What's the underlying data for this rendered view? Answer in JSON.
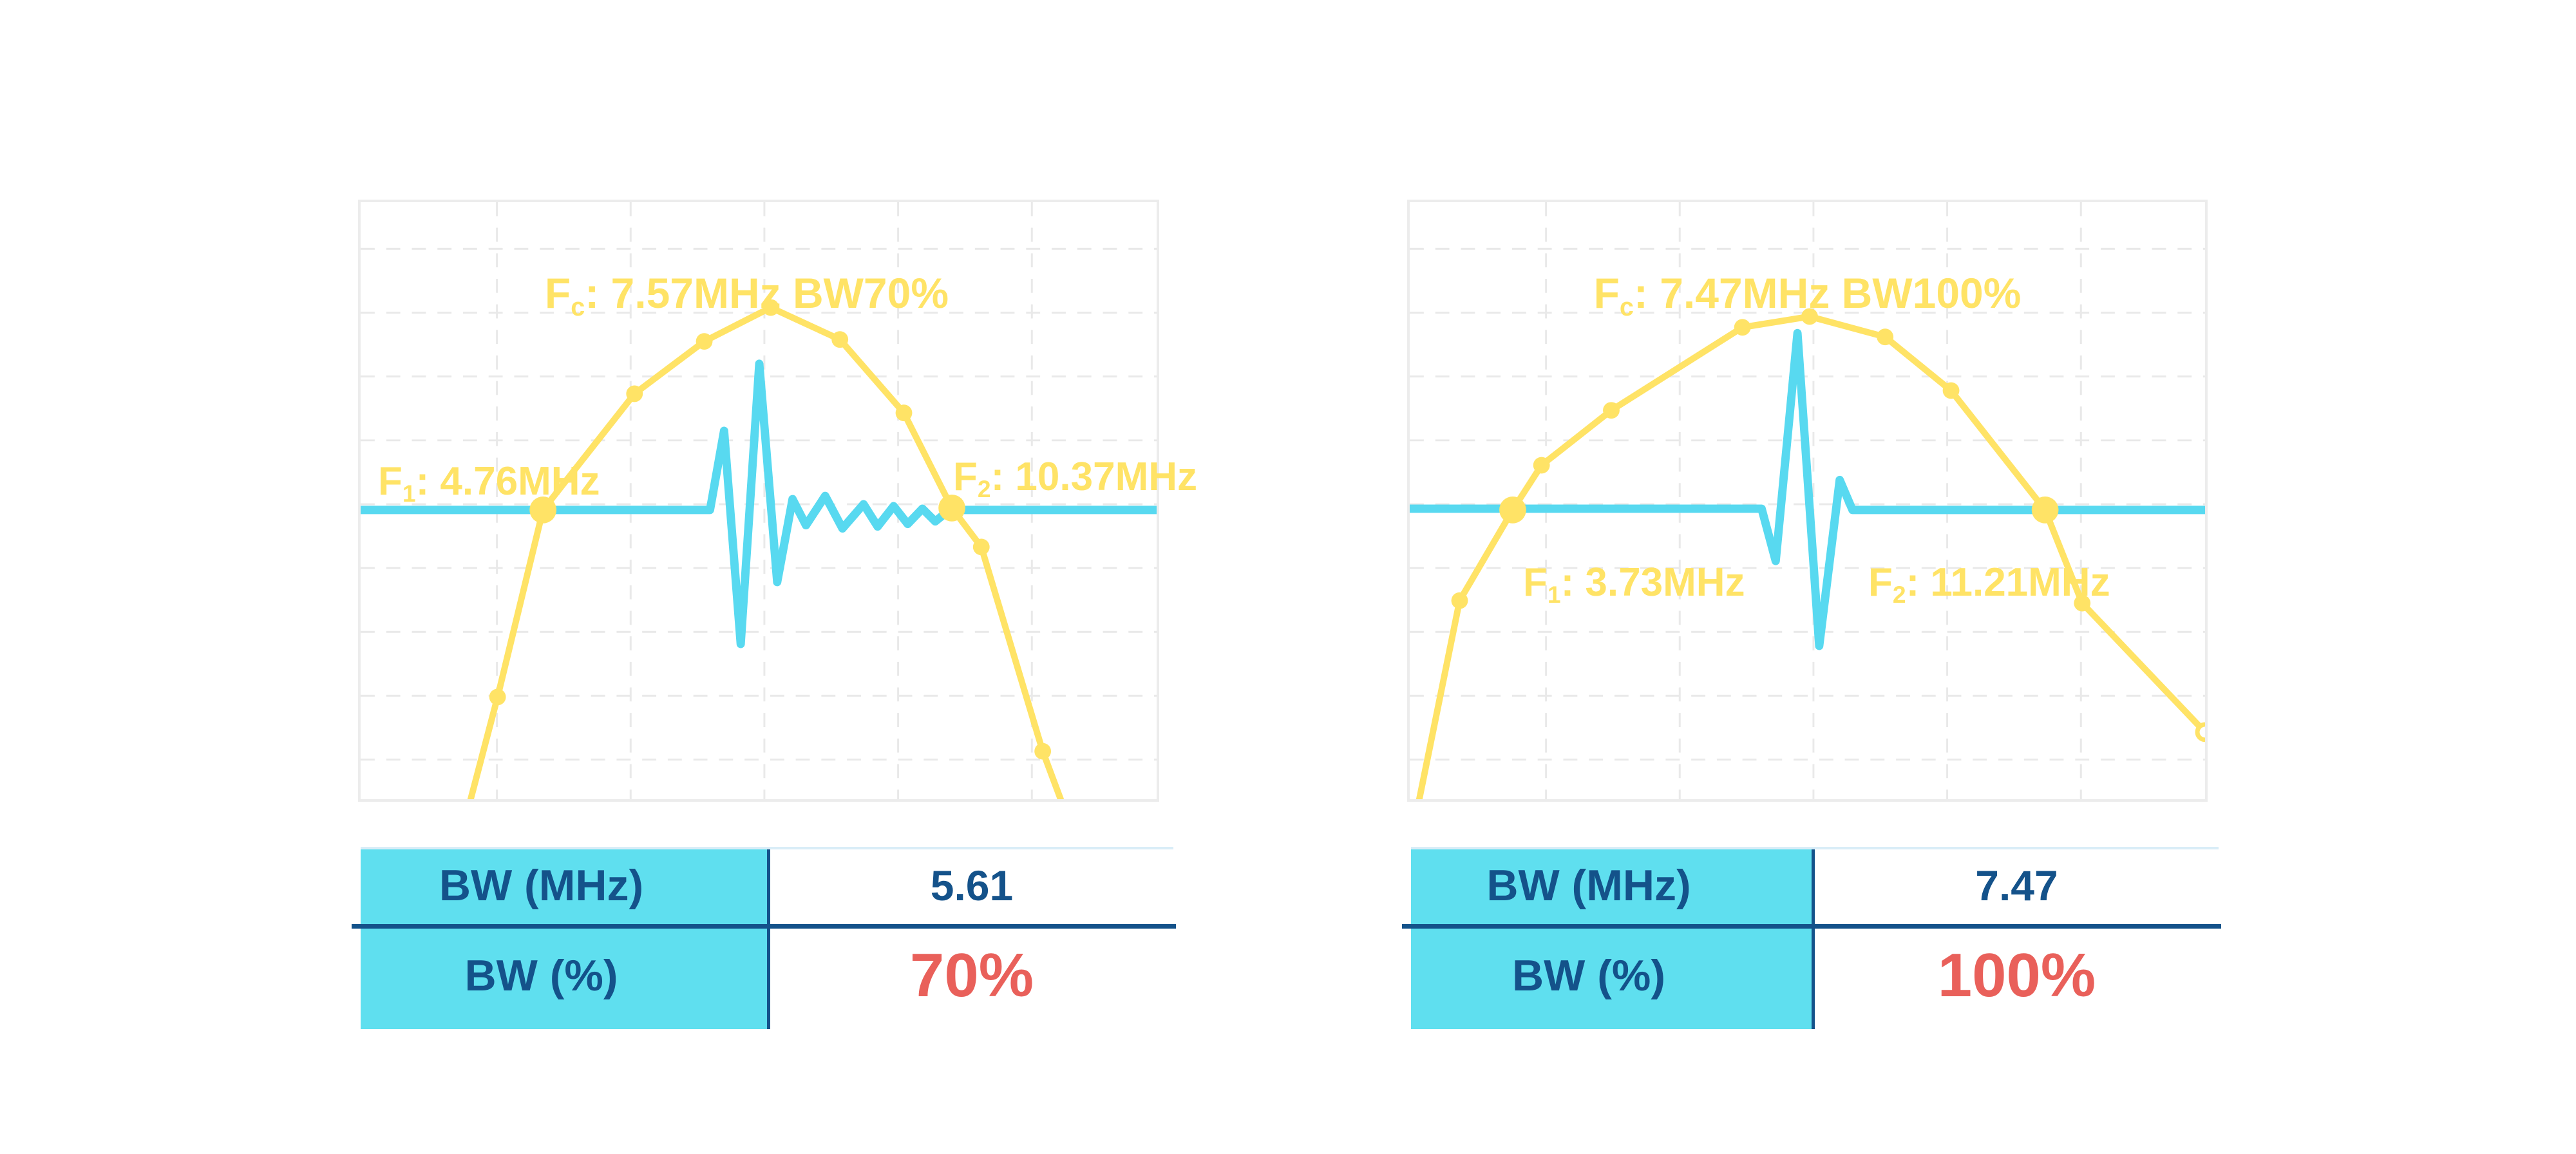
{
  "colors": {
    "yellow": "#FFE366",
    "cyan": "#58D9F0",
    "table_cyan": "#5FDFEF",
    "navy": "#14528A",
    "red": "#E9605A",
    "panel_border": "#ECECEC",
    "grid": "#E9E9E9",
    "table_topline": "#D9EDF7"
  },
  "chart_data": [
    {
      "type": "line",
      "title_annotation": {
        "sym": "F",
        "sub": "c",
        "text": ": 7.57MHz BW70%"
      },
      "f1_annotation": {
        "sym": "F",
        "sub": "1",
        "text": ": 4.76MHz"
      },
      "f2_annotation": {
        "sym": "F",
        "sub": "2",
        "text": ": 10.37MHz"
      },
      "fc_mhz": 7.57,
      "f1_mhz": 4.76,
      "f2_mhz": 10.37,
      "bw_mhz": 5.61,
      "bw_pct": 70,
      "series": [
        {
          "name": "pulse-waveform",
          "color_key": "cyan",
          "stroke_width": 13,
          "points": [
            [
              0,
              482
            ],
            [
              546,
              482
            ],
            [
              568,
              358
            ],
            [
              594,
              692
            ],
            [
              623,
              253
            ],
            [
              651,
              595
            ],
            [
              675,
              465
            ],
            [
              696,
              506
            ],
            [
              726,
              460
            ],
            [
              753,
              511
            ],
            [
              786,
              473
            ],
            [
              808,
              508
            ],
            [
              833,
              476
            ],
            [
              855,
              504
            ],
            [
              878,
              480
            ],
            [
              898,
              500
            ],
            [
              920,
              482
            ],
            [
              1244,
              482
            ]
          ],
          "big_markers": [],
          "small_markers": [],
          "open_markers": []
        },
        {
          "name": "spectrum-curve",
          "color_key": "yellow",
          "stroke_width": 10,
          "points": [
            [
              172,
              935
            ],
            [
              214,
              775
            ],
            [
              285,
              482
            ],
            [
              428,
              300
            ],
            [
              537,
              218
            ],
            [
              641,
              165
            ],
            [
              749,
              215
            ],
            [
              849,
              330
            ],
            [
              924,
              479
            ],
            [
              970,
              540
            ],
            [
              1066,
              860
            ],
            [
              1094,
              935
            ]
          ],
          "big_markers": [
            2,
            8
          ],
          "small_markers": [
            1,
            3,
            4,
            5,
            6,
            7,
            9,
            10
          ],
          "open_markers": []
        }
      ],
      "table": {
        "rows": [
          {
            "label": "BW (MHz)",
            "value": "5.61"
          },
          {
            "label": "BW (%)",
            "value": "70%"
          }
        ]
      }
    },
    {
      "type": "line",
      "title_annotation": {
        "sym": "F",
        "sub": "c",
        "text": ": 7.47MHz BW100%"
      },
      "f1_annotation": {
        "sym": "F",
        "sub": "1",
        "text": ": 3.73MHz"
      },
      "f2_annotation": {
        "sym": "F",
        "sub": "2",
        "text": ": 11.21MHz"
      },
      "fc_mhz": 7.47,
      "f1_mhz": 3.73,
      "f2_mhz": 11.21,
      "bw_mhz": 7.47,
      "bw_pct": 100,
      "series": [
        {
          "name": "pulse-waveform",
          "color_key": "cyan",
          "stroke_width": 13,
          "points": [
            [
              0,
              480
            ],
            [
              550,
              480
            ],
            [
              572,
              562
            ],
            [
              606,
              205
            ],
            [
              640,
              695
            ],
            [
              672,
              435
            ],
            [
              692,
              482
            ],
            [
              1243,
              482
            ]
          ],
          "big_markers": [],
          "small_markers": [],
          "open_markers": []
        },
        {
          "name": "spectrum-curve",
          "color_key": "yellow",
          "stroke_width": 10,
          "points": [
            [
              15,
              935
            ],
            [
              78,
              624
            ],
            [
              161,
              482
            ],
            [
              206,
              412
            ],
            [
              315,
              326
            ],
            [
              520,
              196
            ],
            [
              625,
              179
            ],
            [
              743,
              211
            ],
            [
              846,
              295
            ],
            [
              993,
              482
            ],
            [
              1051,
              628
            ],
            [
              1243,
              830
            ]
          ],
          "big_markers": [
            2,
            9
          ],
          "small_markers": [
            1,
            3,
            4,
            5,
            6,
            7,
            8,
            10
          ],
          "open_markers": [
            11
          ]
        }
      ],
      "table": {
        "rows": [
          {
            "label": "BW (MHz)",
            "value": "7.47"
          },
          {
            "label": "BW (%)",
            "value": "100%"
          }
        ]
      }
    }
  ]
}
